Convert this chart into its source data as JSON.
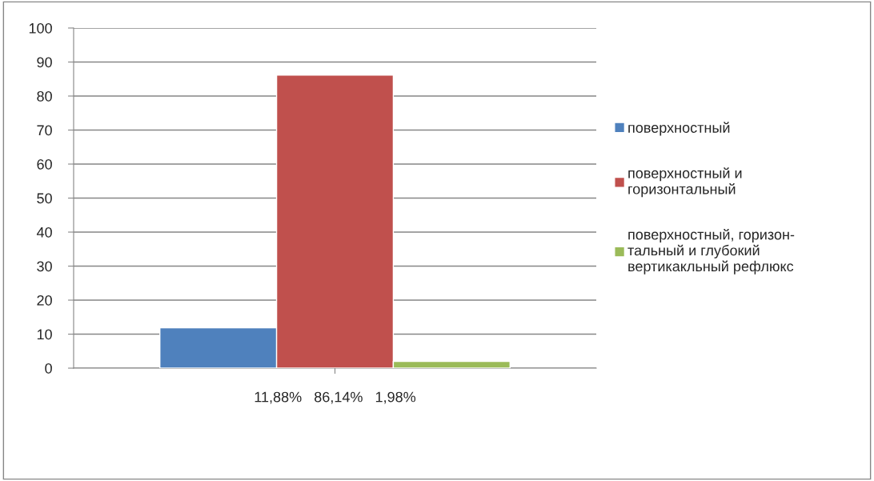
{
  "chart_data": {
    "type": "bar",
    "categories": [
      "11,88%   86,14%   1,98%"
    ],
    "series": [
      {
        "name": "поверхностный",
        "color": "#4f81bd",
        "values": [
          11.88
        ]
      },
      {
        "name": "поверхностный и\nгоризонтальный",
        "color": "#c0504d",
        "values": [
          86.14
        ]
      },
      {
        "name": "поверхностный, горизон-\nтальный и глубокий\nвертикакльный рефлюкс",
        "color": "#9bbb59",
        "values": [
          1.98
        ]
      }
    ],
    "ylim": [
      0,
      100
    ],
    "yticks": [
      0,
      10,
      20,
      30,
      40,
      50,
      60,
      70,
      80,
      90,
      100
    ],
    "grid": "y",
    "legend": "right"
  }
}
